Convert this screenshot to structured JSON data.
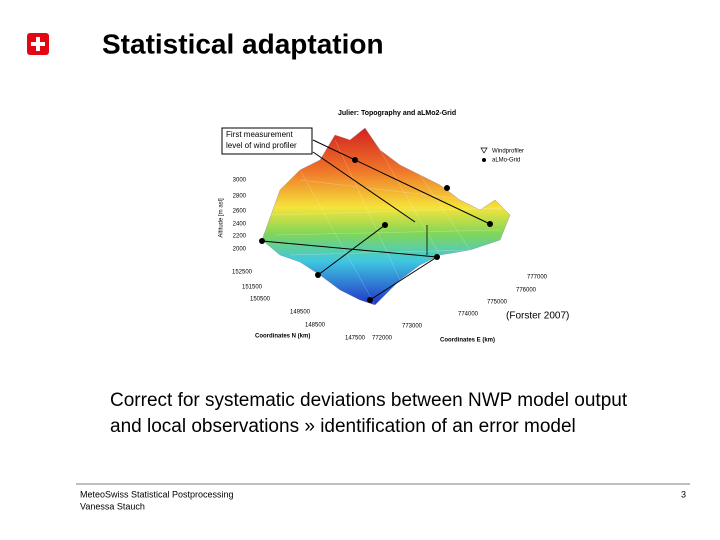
{
  "header": {
    "title": "Statistical adaptation"
  },
  "figure": {
    "title": "Julier: Topography and aLMo2-Grid",
    "callout": [
      "First measurement",
      "level of wind profiler"
    ],
    "legend": [
      "Windprofiler",
      "aLMo-Grid"
    ],
    "z_axis_label": "Altitude [m asl]",
    "z_ticks": [
      "3000",
      "2800",
      "2600",
      "2400",
      "2200",
      "2000"
    ],
    "n_axis_label": "Coordinates N (km)",
    "n_ticks": [
      "152500",
      "151500",
      "150500",
      "149500",
      "148500",
      "147500"
    ],
    "e_axis_label": "Coordinates E (km)",
    "e_ticks": [
      "777000",
      "776000",
      "775000",
      "774000",
      "773000",
      "772000"
    ],
    "source": "(Forster 2007)"
  },
  "body": {
    "lines": [
      "Correct for systematic deviations between NWP model output",
      "and local observations  »  identification of an error model"
    ]
  },
  "footer": {
    "lines": [
      "MeteoSwiss Statistical Postprocessing",
      "Vanessa Stauch"
    ],
    "page": "3"
  }
}
